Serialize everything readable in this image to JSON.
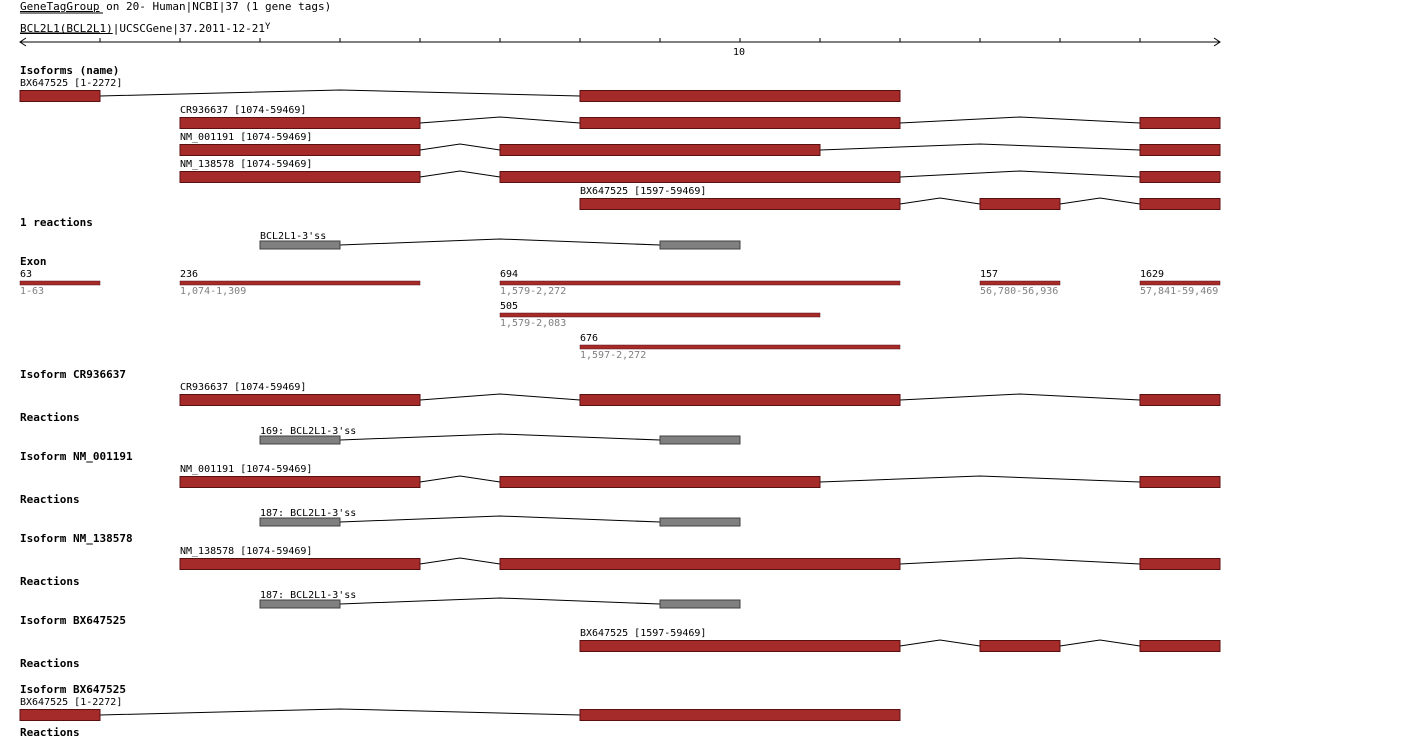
{
  "header": {
    "group_link": "GeneTagGroup",
    "group_suffix": "on 20- Human|NCBI|37 (1 gene tags)",
    "gene_link": "BCL2L1(BCL2L1)",
    "gene_suffix": "|UCSCGene|37.2011-12-21",
    "gene_mark": "Y"
  },
  "axis": {
    "tick_label": "10"
  },
  "colors": {
    "exon_fill": "#a52a2a",
    "exon_stroke": "#5a1010",
    "reaction_fill": "#808080",
    "reaction_stroke": "#404040",
    "line": "#000000",
    "range_text": "#808080"
  },
  "sections": {
    "isoforms_title": "Isoforms (name)",
    "reactions_count": "1 reactions",
    "exon_title": "Exon",
    "iso1_title": "Isoform CR936637",
    "iso2_title": "Isoform NM_001191",
    "iso3_title": "Isoform NM_138578",
    "iso4_title": "Isoform BX647525",
    "iso5_title": "Isoform BX647525",
    "reactions_title": "Reactions"
  },
  "isoform_labels": {
    "bx1": "BX647525 [1-2272]",
    "cr": "CR936637 [1074-59469]",
    "nm1": "NM_001191 [1074-59469]",
    "nm2": "NM_138578 [1074-59469]",
    "bx2": "BX647525 [1597-59469]"
  },
  "reaction_labels": {
    "summary": "BCL2L1-3'ss",
    "r1": "169: BCL2L1-3'ss",
    "r2": "187: BCL2L1-3'ss",
    "r3": "187: BCL2L1-3'ss"
  },
  "exons": [
    {
      "length": "63",
      "range": "1-63"
    },
    {
      "length": "236",
      "range": "1,074-1,309"
    },
    {
      "length": "694",
      "range": "1,579-2,272"
    },
    {
      "length": "157",
      "range": "56,780-56,936"
    },
    {
      "length": "1629",
      "range": "57,841-59,469"
    },
    {
      "length": "505",
      "range": "1,579-2,083"
    },
    {
      "length": "676",
      "range": "1,597-2,272"
    }
  ]
}
